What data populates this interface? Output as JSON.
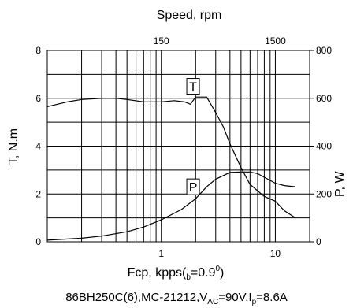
{
  "chart_data": {
    "type": "line",
    "title": "Speed, rpm",
    "top_axis_ticks": [
      "150",
      "1500"
    ],
    "xlabel_parts": {
      "main": "Fcp, kpps(",
      "sub": "b",
      "eq": "=0.9",
      "sup": "0",
      "close": ")"
    },
    "x_scale": "log",
    "xlim": [
      0.1,
      20
    ],
    "x_ticks": [
      {
        "value": 1,
        "label": "1"
      },
      {
        "value": 10,
        "label": "10"
      }
    ],
    "ylabel": "T, N.m",
    "ylim": [
      0,
      8
    ],
    "y_ticks": [
      "0",
      "2",
      "4",
      "6",
      "8"
    ],
    "ylabel_right": "P, W",
    "ylim_right": [
      0,
      800
    ],
    "y_right_ticks": [
      "0",
      "200",
      "400",
      "600",
      "800"
    ],
    "series": [
      {
        "name": "T",
        "axis": "left",
        "x": [
          0.1,
          0.15,
          0.2,
          0.3,
          0.4,
          0.5,
          0.7,
          1.0,
          1.3,
          1.6,
          1.8,
          2.0,
          2.5,
          3.0,
          3.5,
          4.0,
          5.0,
          6.0,
          8.0,
          10.0,
          12.0,
          15.0
        ],
        "y": [
          5.65,
          5.85,
          5.95,
          6.0,
          6.0,
          5.95,
          5.85,
          5.85,
          5.9,
          5.85,
          5.75,
          6.05,
          6.05,
          5.4,
          4.8,
          4.1,
          3.1,
          2.4,
          1.9,
          1.7,
          1.3,
          1.0
        ]
      },
      {
        "name": "P",
        "axis": "right",
        "x": [
          0.1,
          0.2,
          0.3,
          0.5,
          0.7,
          1.0,
          1.5,
          2.0,
          2.5,
          3.0,
          4.0,
          5.0,
          6.0,
          7.0,
          8.0,
          10.0,
          12.0,
          15.0
        ],
        "y": [
          7,
          15,
          24,
          42,
          62,
          92,
          135,
          180,
          230,
          262,
          290,
          292,
          292,
          285,
          270,
          245,
          235,
          230
        ]
      }
    ],
    "series_labels": [
      {
        "text": "T",
        "x": 1.9,
        "y": 6.5
      },
      {
        "text": "P",
        "x": 1.9,
        "y": 2.3
      }
    ],
    "grid": true,
    "caption_parts": {
      "a": "86BH250C(6),MC-21212,V",
      "b": "AC",
      "c": "=90V,I",
      "d": "p",
      "e": "=8.6A"
    }
  }
}
